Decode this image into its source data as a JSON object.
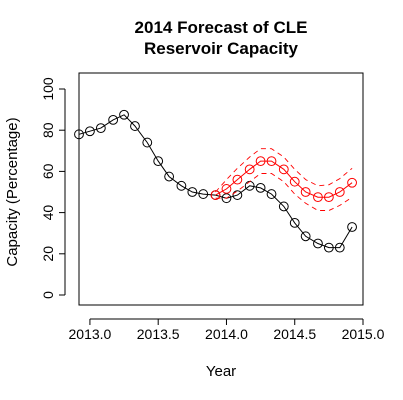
{
  "chart_data": {
    "type": "line",
    "title_lines": [
      "2014 Forecast of CLE",
      "Reservoir Capacity"
    ],
    "xlabel": "Year",
    "ylabel": "Capacity (Percentage)",
    "xlim": [
      2012.92,
      2015.0
    ],
    "ylim": [
      0,
      100
    ],
    "x_ticks": [
      2013.0,
      2013.5,
      2014.0,
      2014.5,
      2015.0
    ],
    "x_tick_labels": [
      "2013.0",
      "2013.5",
      "2014.0",
      "2014.5",
      "2015.0"
    ],
    "y_ticks": [
      0,
      20,
      40,
      60,
      80,
      100
    ],
    "y_tick_labels": [
      "0",
      "20",
      "40",
      "60",
      "80",
      "100"
    ],
    "series": [
      {
        "color": "#000000",
        "line_style": "solid",
        "marker": "circle",
        "x": [
          2012.92,
          2013.0,
          2013.08,
          2013.17,
          2013.25,
          2013.33,
          2013.42,
          2013.5,
          2013.58,
          2013.67,
          2013.75,
          2013.83,
          2013.92,
          2014.0,
          2014.08,
          2014.17,
          2014.25,
          2014.33,
          2014.42,
          2014.5,
          2014.58,
          2014.67,
          2014.75,
          2014.83,
          2014.92
        ],
        "y": [
          78,
          79.5,
          81,
          85,
          87.5,
          82,
          74,
          65,
          57.5,
          53,
          50,
          49,
          48.5,
          47,
          48.5,
          53,
          52,
          49,
          43,
          35,
          28.5,
          25,
          23,
          23,
          33
        ]
      },
      {
        "color": "#ff0000",
        "line_style": "solid",
        "marker": "circle",
        "x": [
          2013.92,
          2014.0,
          2014.08,
          2014.17,
          2014.25,
          2014.33,
          2014.42,
          2014.5,
          2014.58,
          2014.67,
          2014.75,
          2014.83,
          2014.92
        ],
        "y": [
          48.5,
          51.5,
          56,
          61,
          65,
          65,
          61,
          55,
          50,
          47.5,
          47.5,
          50,
          54.5
        ]
      },
      {
        "color": "#ff0000",
        "line_style": "dashed",
        "marker": "none",
        "x": [
          2013.92,
          2014.0,
          2014.08,
          2014.17,
          2014.25,
          2014.33,
          2014.42,
          2014.5,
          2014.58,
          2014.67,
          2014.75,
          2014.83,
          2014.92
        ],
        "y": [
          50,
          56,
          61.5,
          67,
          71,
          71,
          67,
          61,
          56,
          53,
          53.5,
          56.5,
          61.5
        ]
      },
      {
        "color": "#ff0000",
        "line_style": "dashed",
        "marker": "none",
        "x": [
          2013.92,
          2014.0,
          2014.08,
          2014.17,
          2014.25,
          2014.33,
          2014.42,
          2014.5,
          2014.58,
          2014.67,
          2014.75,
          2014.83,
          2014.92
        ],
        "y": [
          47,
          47,
          50.5,
          55,
          59,
          59,
          55,
          49,
          44.5,
          41,
          41,
          43.5,
          47.5
        ]
      }
    ],
    "grid": false,
    "legend": "none"
  }
}
